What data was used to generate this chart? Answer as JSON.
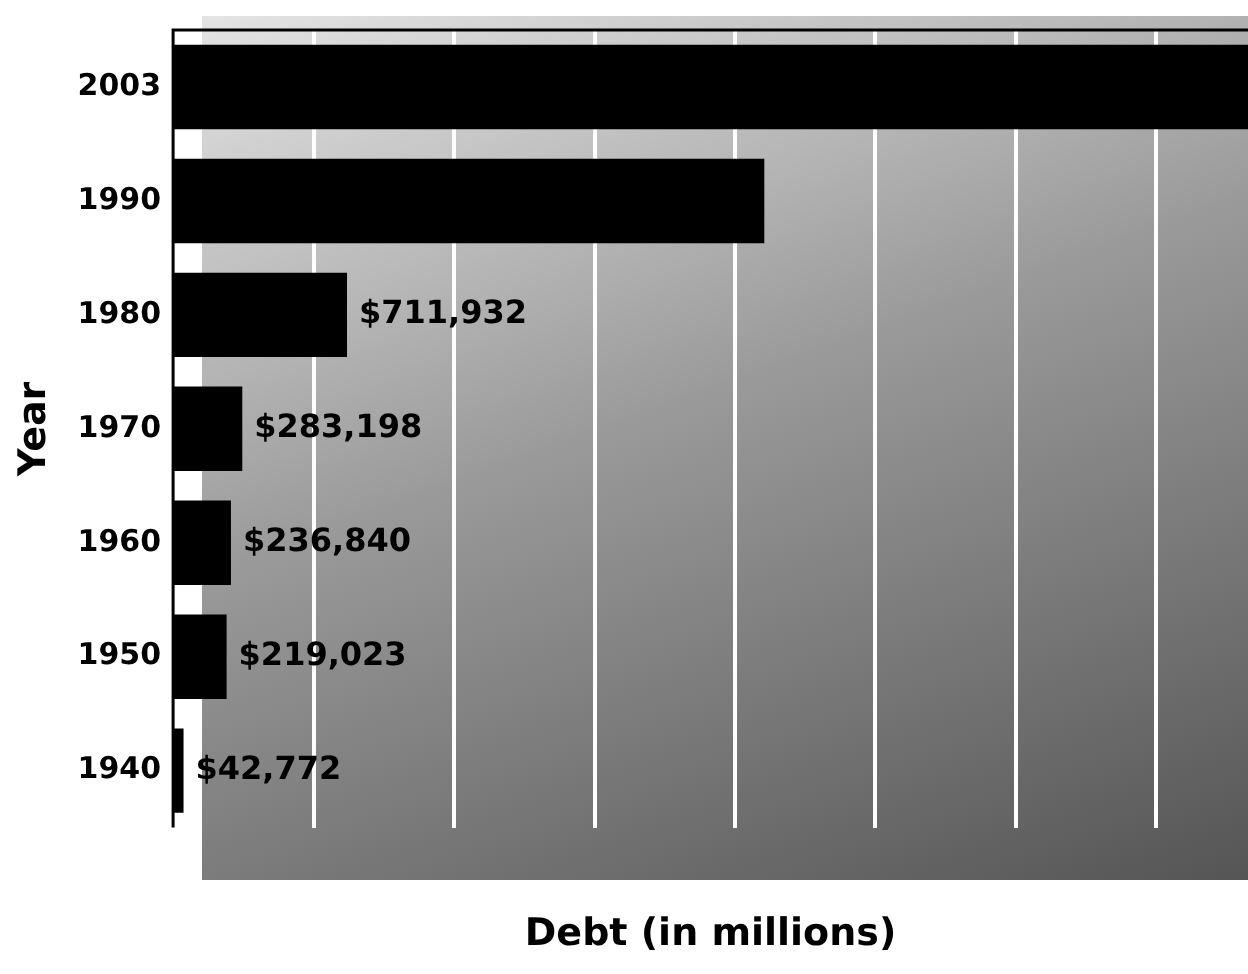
{
  "chart_data": {
    "type": "bar",
    "orientation": "horizontal",
    "xlabel": "Debt (in millions)",
    "ylabel": "Year",
    "categories": [
      "2003",
      "1990",
      "1980",
      "1970",
      "1960",
      "1950",
      "1940"
    ],
    "values": [
      4400000,
      2420000,
      711932,
      283198,
      236840,
      219023,
      42772
    ],
    "value_labels": [
      null,
      null,
      "$711,932",
      "$283,198",
      "$236,840",
      "$219,023",
      "$42,772"
    ],
    "color": "#000000",
    "xlim": [
      0,
      4400000
    ],
    "xticks": [
      {
        "value": 575000,
        "label": null
      },
      {
        "value": 1150000,
        "label": null
      },
      {
        "value": 1725000,
        "label": null
      },
      {
        "value": 2300000,
        "label": null
      },
      {
        "value": 2875000,
        "label": null
      },
      {
        "value": 3450000,
        "label": null
      },
      {
        "value": 4025000,
        "label": null
      }
    ],
    "grid": "x",
    "legend": false
  }
}
